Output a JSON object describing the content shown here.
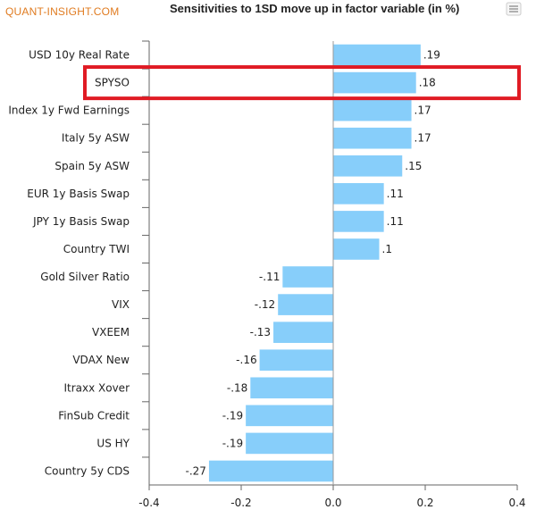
{
  "header": {
    "brand": "QUANT-INSIGHT.COM"
  },
  "chart_data": {
    "type": "bar",
    "orientation": "horizontal",
    "title": "Sensitivities to 1SD move up in factor variable (in %)",
    "categories": [
      "USD 10y Real Rate",
      "SPYSO",
      "Index 1y Fwd Earnings",
      "Italy 5y ASW",
      "Spain 5y ASW",
      "EUR 1y Basis Swap",
      "JPY 1y Basis Swap",
      "Country TWI",
      "Gold Silver Ratio",
      "VIX",
      "VXEEM",
      "VDAX New",
      "Itraxx Xover",
      "FinSub Credit",
      "US HY",
      "Country 5y CDS"
    ],
    "values": [
      0.19,
      0.18,
      0.17,
      0.17,
      0.15,
      0.11,
      0.11,
      0.1,
      -0.11,
      -0.12,
      -0.13,
      -0.16,
      -0.18,
      -0.19,
      -0.19,
      -0.27
    ],
    "value_labels": [
      ".19",
      ".18",
      ".17",
      ".17",
      ".15",
      ".11",
      ".11",
      ".1",
      "-.11",
      "-.12",
      "-.13",
      "-.16",
      "-.18",
      "-.19",
      "-.19",
      "-.27"
    ],
    "xlim": [
      -0.4,
      0.4
    ],
    "xticks": [
      -0.4,
      -0.2,
      0.0,
      0.2,
      0.4
    ],
    "xtick_labels": [
      "-0.4",
      "-0.2",
      "0.0",
      "0.2",
      "0.4"
    ],
    "highlighted_category": "SPYSO",
    "bar_color": "#87cefa",
    "highlight_color": "#e01b24",
    "grid": false
  }
}
